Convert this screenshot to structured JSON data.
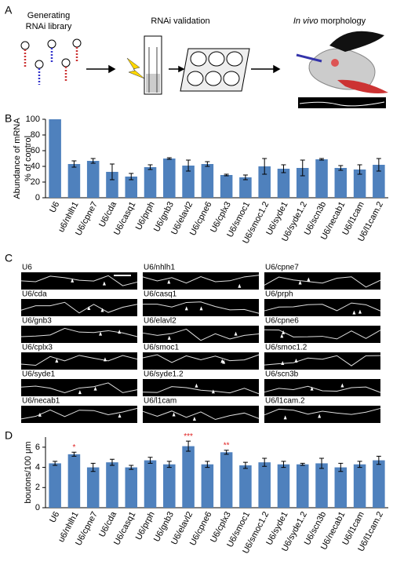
{
  "panels": [
    "A",
    "B",
    "C",
    "D"
  ],
  "panel_a": {
    "step1": [
      "Generating",
      "RNAi library"
    ],
    "step2": "RNAi validation",
    "step3": {
      "italic": "In vivo",
      "text": "morphology"
    }
  },
  "panel_c": {
    "labels": [
      "U6",
      "U6/nhlh1",
      "U6/cpne7",
      "U6/cda",
      "U6/casq1",
      "U6/prph",
      "U6/gnb3",
      "U6/elavl2",
      "U6/cpne6",
      "U6/cplx3",
      "U6/smoc1",
      "U6/smoc1.2",
      "U6/syde1",
      "U6/syde1.2",
      "U6/scn3b",
      "U6/necab1",
      "U6/l1cam",
      "U6/l1cam.2"
    ]
  },
  "chart_data": [
    {
      "type": "bar",
      "ylabel": [
        "Abundance of mRNA",
        "% of control"
      ],
      "categories": [
        "U6",
        "u6/nhlh1",
        "U6/cpne7",
        "U6/cda",
        "U6/casq1",
        "U6/prph",
        "U6/gnb3",
        "U6/elavl2",
        "U6/cpne6",
        "U6/cplx3",
        "U6/smoc1",
        "U6/smoc1.2",
        "U6/syde1",
        "U6/syde1.2",
        "U6/scn3b",
        "U6/necab1",
        "U6/l1cam",
        "U6/l1cam.2"
      ],
      "values": [
        100,
        43,
        47,
        33,
        27,
        39,
        50,
        41,
        43,
        29,
        26,
        40,
        37,
        38,
        49,
        38,
        36,
        42
      ],
      "errors": [
        0,
        4,
        3,
        10,
        4,
        3,
        1,
        7,
        3,
        1,
        3,
        10,
        5,
        10,
        1,
        3,
        6,
        8
      ],
      "color": "#4f81bd",
      "ylim": [
        0,
        100
      ],
      "yticks": [
        0,
        20,
        40,
        60,
        80,
        100
      ]
    },
    {
      "type": "bar",
      "ylabel": [
        "boutons/100 μm"
      ],
      "categories": [
        "U6",
        "u6/nhlh1",
        "U6/cpne7",
        "U6/cda",
        "U6/casq1",
        "U6/prph",
        "U6/gnb3",
        "U6/elavl2",
        "U6/cpne6",
        "U6/cplx3",
        "U6/smoc1",
        "U6/smoc1.2",
        "U6/syde1",
        "U6/syde1.2",
        "U6/scn3b",
        "U6/necab1",
        "U6/l1cam",
        "U6/l1cam.2"
      ],
      "values": [
        4.4,
        5.3,
        4.0,
        4.5,
        4.0,
        4.7,
        4.3,
        6.1,
        4.3,
        5.5,
        4.2,
        4.5,
        4.3,
        4.3,
        4.4,
        4.0,
        4.3,
        4.7
      ],
      "errors": [
        0.2,
        0.2,
        0.4,
        0.3,
        0.2,
        0.3,
        0.3,
        0.5,
        0.3,
        0.2,
        0.3,
        0.4,
        0.3,
        0.1,
        0.5,
        0.4,
        0.3,
        0.4
      ],
      "significance": [
        null,
        "*",
        null,
        null,
        null,
        null,
        null,
        "***",
        null,
        "**",
        null,
        null,
        null,
        null,
        null,
        null,
        null,
        null
      ],
      "color": "#4f81bd",
      "ylim": [
        0,
        7
      ],
      "yticks": [
        0,
        2,
        4,
        6
      ]
    }
  ]
}
